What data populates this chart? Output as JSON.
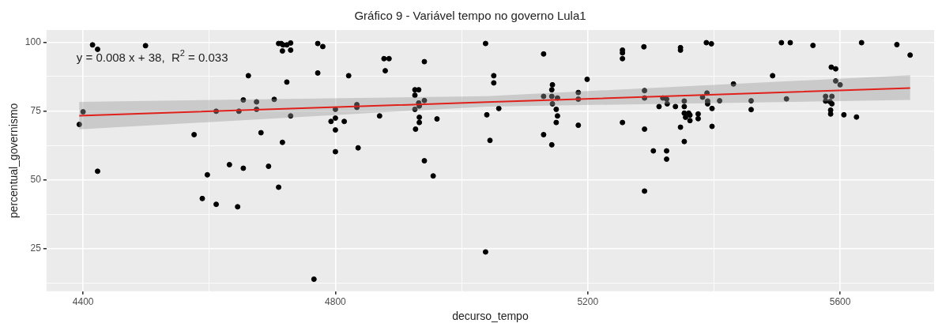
{
  "chart_data": {
    "type": "scatter",
    "title": "Gráfico 9 - Variável tempo no governo Lula1",
    "xlabel": "decurso_tempo",
    "ylabel": "percentual_governismo",
    "annotations": [
      "y = 0.008 x + 38,  R$^{2}$ = 0.033"
    ],
    "xlim": [
      4342,
      5749
    ],
    "ylim": [
      9.5,
      104.4
    ],
    "xticks": [
      4400,
      {
        "value": 4600,
        "label": null
      },
      4800,
      {
        "value": 5000,
        "label": null
      },
      5200,
      {
        "value": 5400,
        "label": null
      },
      5600
    ],
    "yticks": [
      {
        "value": 12.5,
        "label": null
      },
      25,
      {
        "value": 37.5,
        "label": null
      },
      50,
      {
        "value": 62.5,
        "label": null
      },
      75,
      {
        "value": 87.5,
        "label": null
      },
      100
    ],
    "grid": true,
    "legend": false,
    "series": [
      {
        "marker": "circle",
        "color": "#000000",
        "x": [
          4394,
          4400,
          4415,
          4423,
          4423,
          4499,
          4576,
          4589,
          4597,
          4611,
          4611,
          4632,
          4645,
          4647,
          4654,
          4654,
          4662,
          4675,
          4675,
          4682,
          4694,
          4703,
          4710,
          4710,
          4714,
          4717,
          4716,
          4723,
          4729,
          4729,
          4716,
          4723,
          4729,
          4766,
          4772,
          4780,
          4772,
          4793,
          4800,
          4800,
          4800,
          4800,
          4814,
          4821,
          4834,
          4834,
          4836,
          4870,
          4877,
          4885,
          4879,
          4926,
          4932,
          4926,
          4932,
          4926,
          4933,
          4933,
          4933,
          4927,
          4941,
          4941,
          4941,
          4955,
          4961,
          5038,
          5038,
          5040,
          5045,
          5051,
          5051,
          5059,
          5130,
          5130,
          5130,
          5143,
          5144,
          5143,
          5144,
          5152,
          5150,
          5152,
          5150,
          5143,
          5185,
          5185,
          5185,
          5199,
          5255,
          5255,
          5255,
          5255,
          5289,
          5290,
          5290,
          5290,
          5290,
          5304,
          5313,
          5319,
          5325,
          5326,
          5325,
          5325,
          5339,
          5347,
          5347,
          5353,
          5353,
          5353,
          5355,
          5360,
          5362,
          5362,
          5347,
          5353,
          5375,
          5375,
          5382,
          5389,
          5390,
          5390,
          5388,
          5396,
          5397,
          5397,
          5409,
          5431,
          5459,
          5459,
          5493,
          5507,
          5521,
          5515,
          5557,
          5577,
          5577,
          5586,
          5593,
          5587,
          5584,
          5587,
          5593,
          5600,
          5585,
          5585,
          5606,
          5626,
          5634,
          5690,
          5711
        ],
        "values": [
          70.1,
          74.7,
          99.0,
          97.4,
          53.1,
          98.7,
          66.4,
          43.2,
          51.8,
          74.9,
          41.1,
          55.5,
          40.2,
          74.9,
          79.0,
          54.2,
          87.8,
          78.3,
          75.6,
          67.1,
          54.9,
          79.2,
          47.3,
          99.5,
          99.5,
          99.0,
          96.8,
          99.0,
          99.7,
          97.1,
          63.6,
          85.5,
          73.2,
          13.9,
          99.5,
          98.4,
          88.8,
          71.2,
          75.6,
          72.4,
          68.1,
          60.2,
          71.2,
          87.8,
          77.3,
          76.3,
          61.6,
          73.2,
          94.0,
          94.0,
          89.6,
          82.7,
          82.7,
          80.7,
          77.9,
          75.6,
          76.8,
          72.7,
          70.8,
          68.4,
          78.8,
          92.9,
          56.9,
          51.4,
          72.1,
          99.5,
          23.8,
          73.6,
          64.3,
          87.8,
          85.2,
          75.9,
          95.7,
          80.3,
          66.4,
          82.7,
          84.5,
          80.3,
          77.6,
          79.7,
          75.6,
          73.2,
          70.8,
          62.7,
          81.7,
          79.3,
          69.8,
          86.5,
          97.1,
          96.1,
          94.0,
          70.8,
          98.3,
          82.4,
          79.7,
          68.4,
          45.9,
          60.5,
          76.6,
          79.7,
          79.3,
          77.6,
          60.5,
          57.5,
          76.6,
          98.0,
          97.1,
          78.6,
          76.6,
          74.2,
          72.7,
          74.2,
          71.5,
          73.5,
          69.1,
          63.9,
          73.9,
          72.2,
          80.0,
          81.5,
          78.6,
          77.6,
          99.8,
          99.4,
          75.9,
          69.4,
          78.7,
          84.8,
          78.7,
          75.5,
          87.8,
          99.8,
          99.8,
          79.4,
          98.8,
          80.3,
          78.6,
          90.9,
          90.3,
          80.3,
          78.4,
          77.6,
          85.9,
          84.5,
          75.3,
          73.9,
          73.6,
          72.8,
          99.8,
          99.1,
          95.3
        ]
      },
      {
        "type": "line",
        "marker": "none",
        "color": "#e0201b",
        "x": [
          4394,
          5040,
          5711
        ],
        "values": [
          73.3,
          78.2,
          83.3
        ],
        "lower": [
          68.3,
          76.6,
          79.0
        ],
        "upper": [
          78.3,
          80.4,
          88.0
        ]
      }
    ]
  }
}
